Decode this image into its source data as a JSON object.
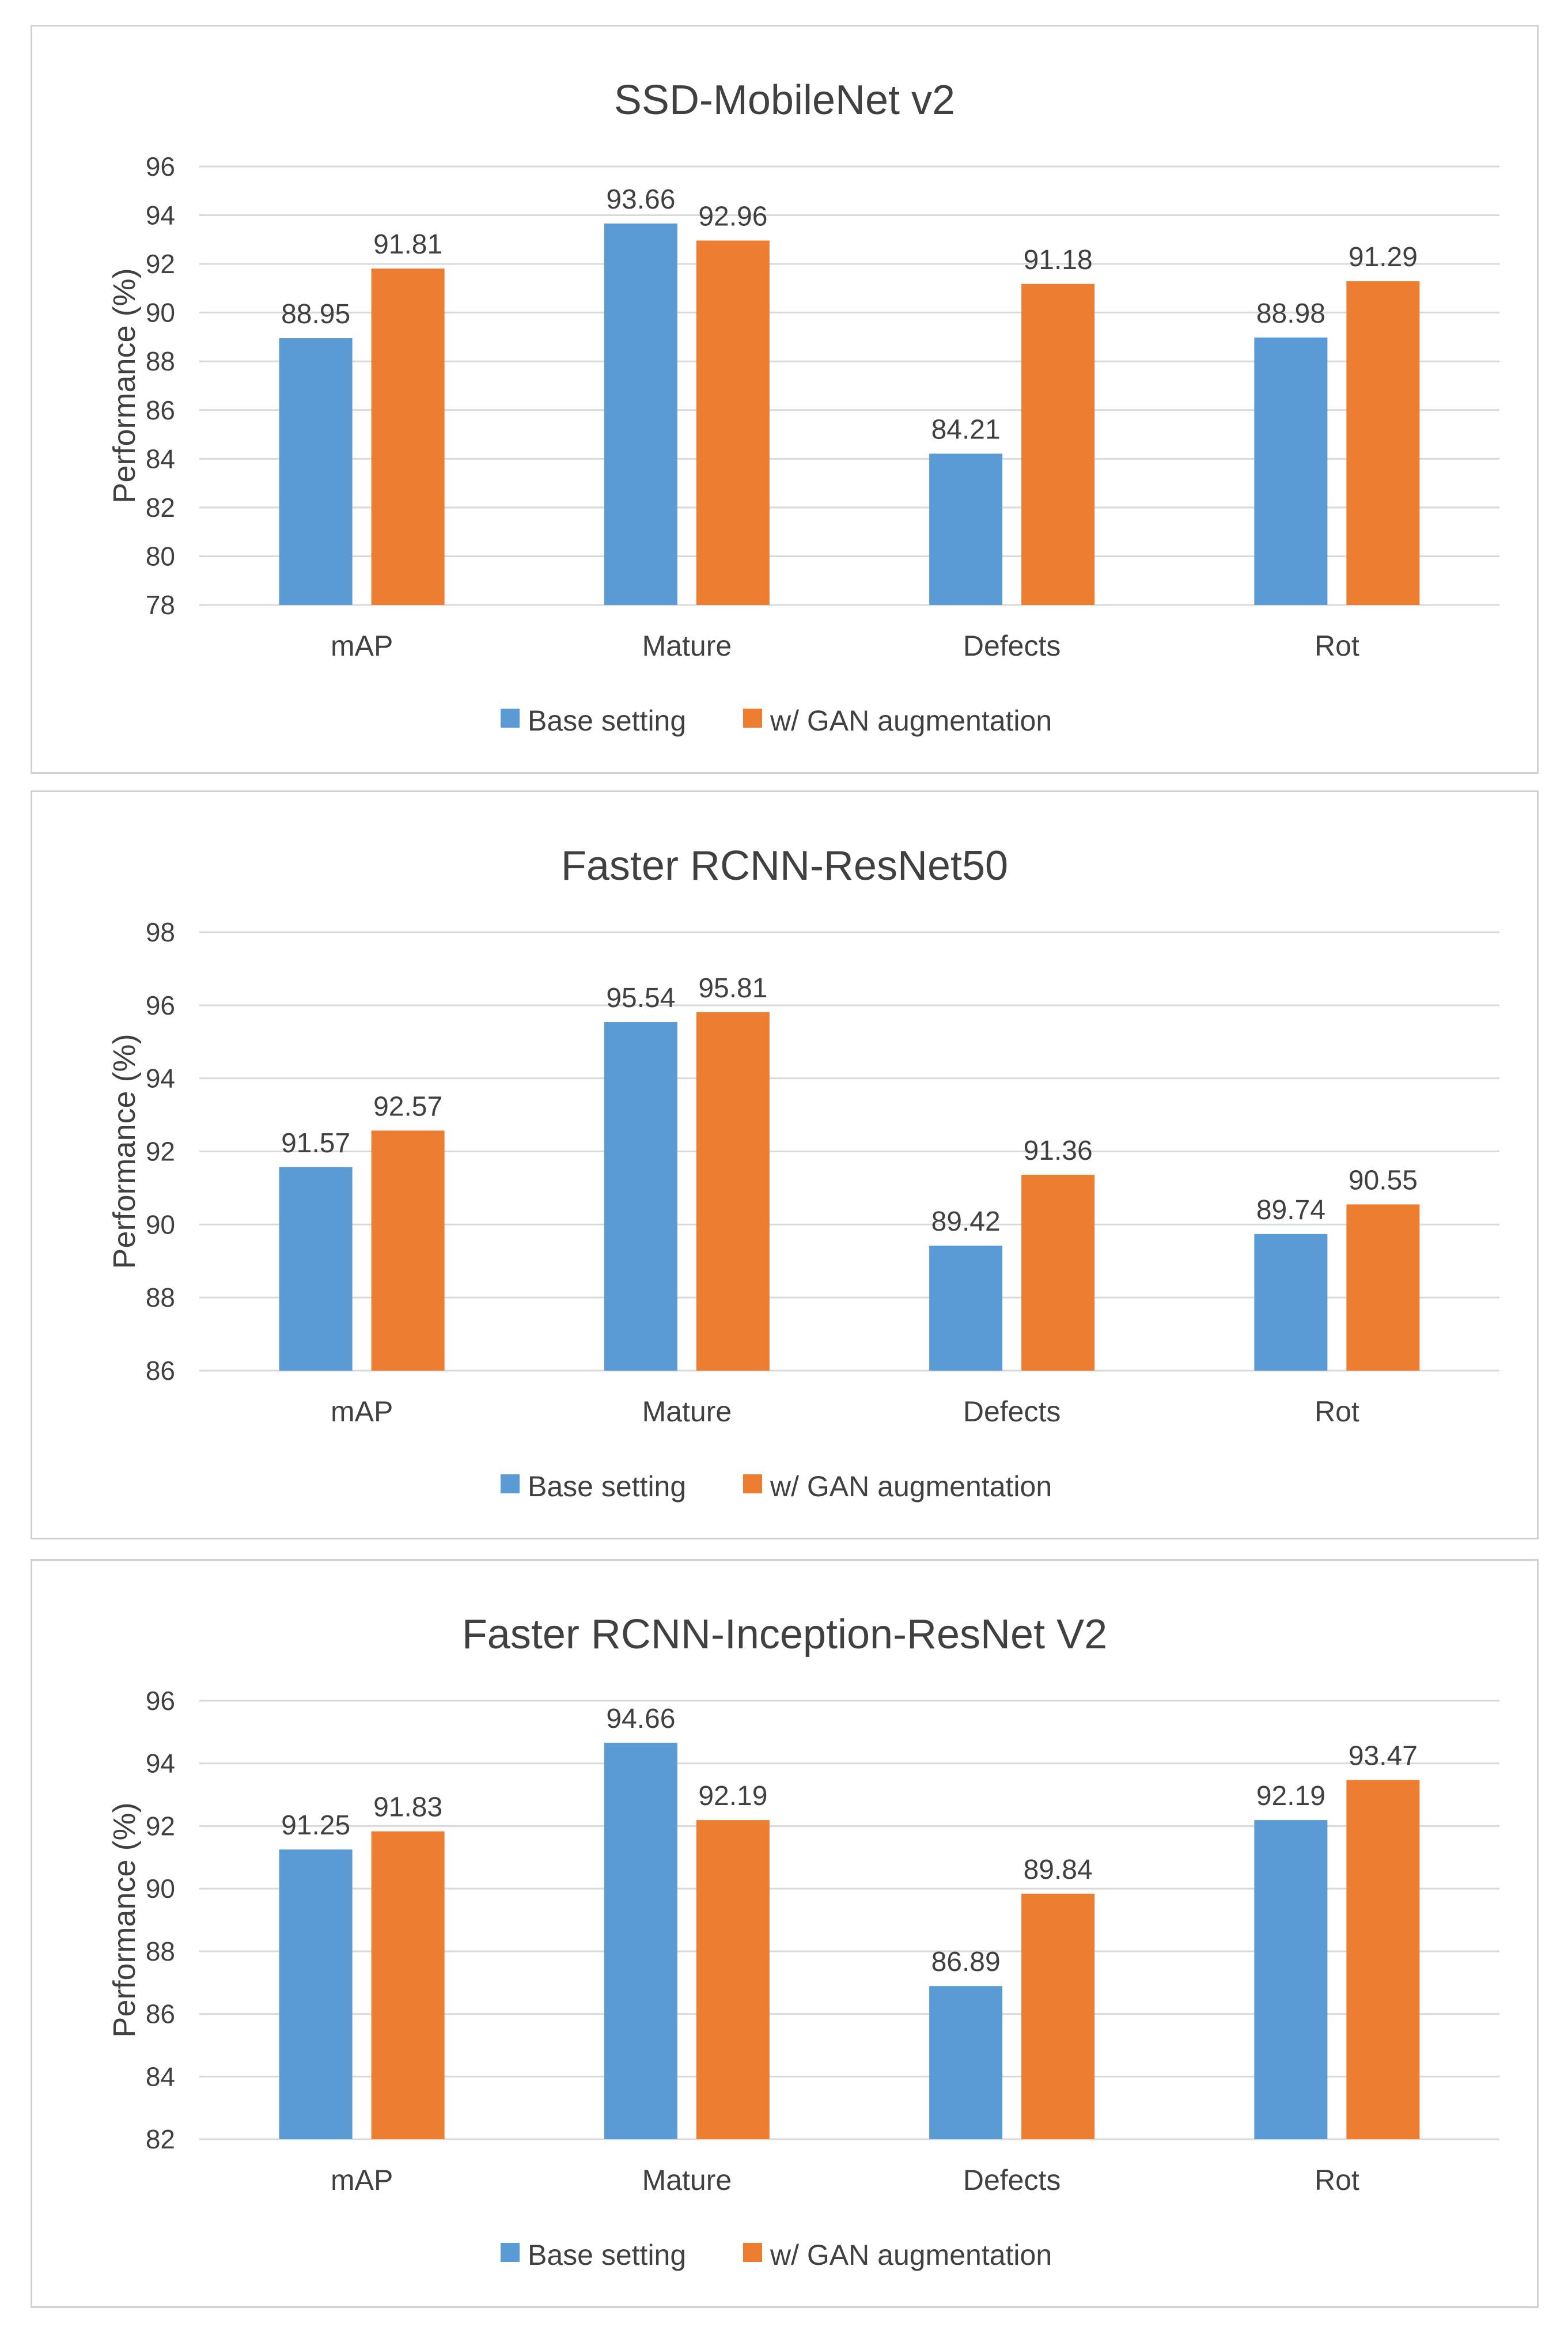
{
  "chart_data": [
    {
      "type": "bar",
      "title": "SSD-MobileNet v2",
      "ylabel": "Performance (%)",
      "xlabel": "",
      "categories": [
        "mAP",
        "Mature",
        "Defects",
        "Rot"
      ],
      "ylim": [
        78,
        96
      ],
      "ytick_step": 2,
      "yticks": [
        "78",
        "80",
        "82",
        "84",
        "86",
        "88",
        "90",
        "92",
        "94",
        "96"
      ],
      "grid": true,
      "legend_position": "bottom",
      "series": [
        {
          "name": "Base setting",
          "color": "#5b9bd5",
          "values": [
            88.95,
            93.66,
            84.21,
            88.98
          ],
          "labels": [
            "88.95",
            "93.66",
            "84.21",
            "88.98"
          ]
        },
        {
          "name": "w/ GAN augmentation",
          "color": "#ed7d31",
          "values": [
            91.81,
            92.96,
            91.18,
            91.29
          ],
          "labels": [
            "91.81",
            "92.96",
            "91.18",
            "91.29"
          ]
        }
      ]
    },
    {
      "type": "bar",
      "title": "Faster RCNN-ResNet50",
      "ylabel": "Performance (%)",
      "xlabel": "",
      "categories": [
        "mAP",
        "Mature",
        "Defects",
        "Rot"
      ],
      "ylim": [
        86,
        98
      ],
      "ytick_step": 2,
      "yticks": [
        "86",
        "88",
        "90",
        "92",
        "94",
        "96",
        "98"
      ],
      "grid": true,
      "legend_position": "bottom",
      "series": [
        {
          "name": "Base setting",
          "color": "#5b9bd5",
          "values": [
            91.57,
            95.54,
            89.42,
            89.74
          ],
          "labels": [
            "91.57",
            "95.54",
            "89.42",
            "89.74"
          ]
        },
        {
          "name": "w/ GAN augmentation",
          "color": "#ed7d31",
          "values": [
            92.57,
            95.81,
            91.36,
            90.55
          ],
          "labels": [
            "92.57",
            "95.81",
            "91.36",
            "90.55"
          ]
        }
      ]
    },
    {
      "type": "bar",
      "title": "Faster RCNN-Inception-ResNet V2",
      "ylabel": "Performance (%)",
      "xlabel": "",
      "categories": [
        "mAP",
        "Mature",
        "Defects",
        "Rot"
      ],
      "ylim": [
        82,
        96
      ],
      "ytick_step": 2,
      "yticks": [
        "82",
        "84",
        "86",
        "88",
        "90",
        "92",
        "94",
        "96"
      ],
      "grid": true,
      "legend_position": "bottom",
      "series": [
        {
          "name": "Base setting",
          "color": "#5b9bd5",
          "values": [
            91.25,
            94.66,
            86.89,
            92.19
          ],
          "labels": [
            "91.25",
            "94.66",
            "86.89",
            "92.19"
          ]
        },
        {
          "name": "w/ GAN augmentation",
          "color": "#ed7d31",
          "values": [
            91.83,
            92.19,
            89.84,
            93.47
          ],
          "labels": [
            "91.83",
            "92.19",
            "89.84",
            "93.47"
          ]
        }
      ]
    }
  ]
}
